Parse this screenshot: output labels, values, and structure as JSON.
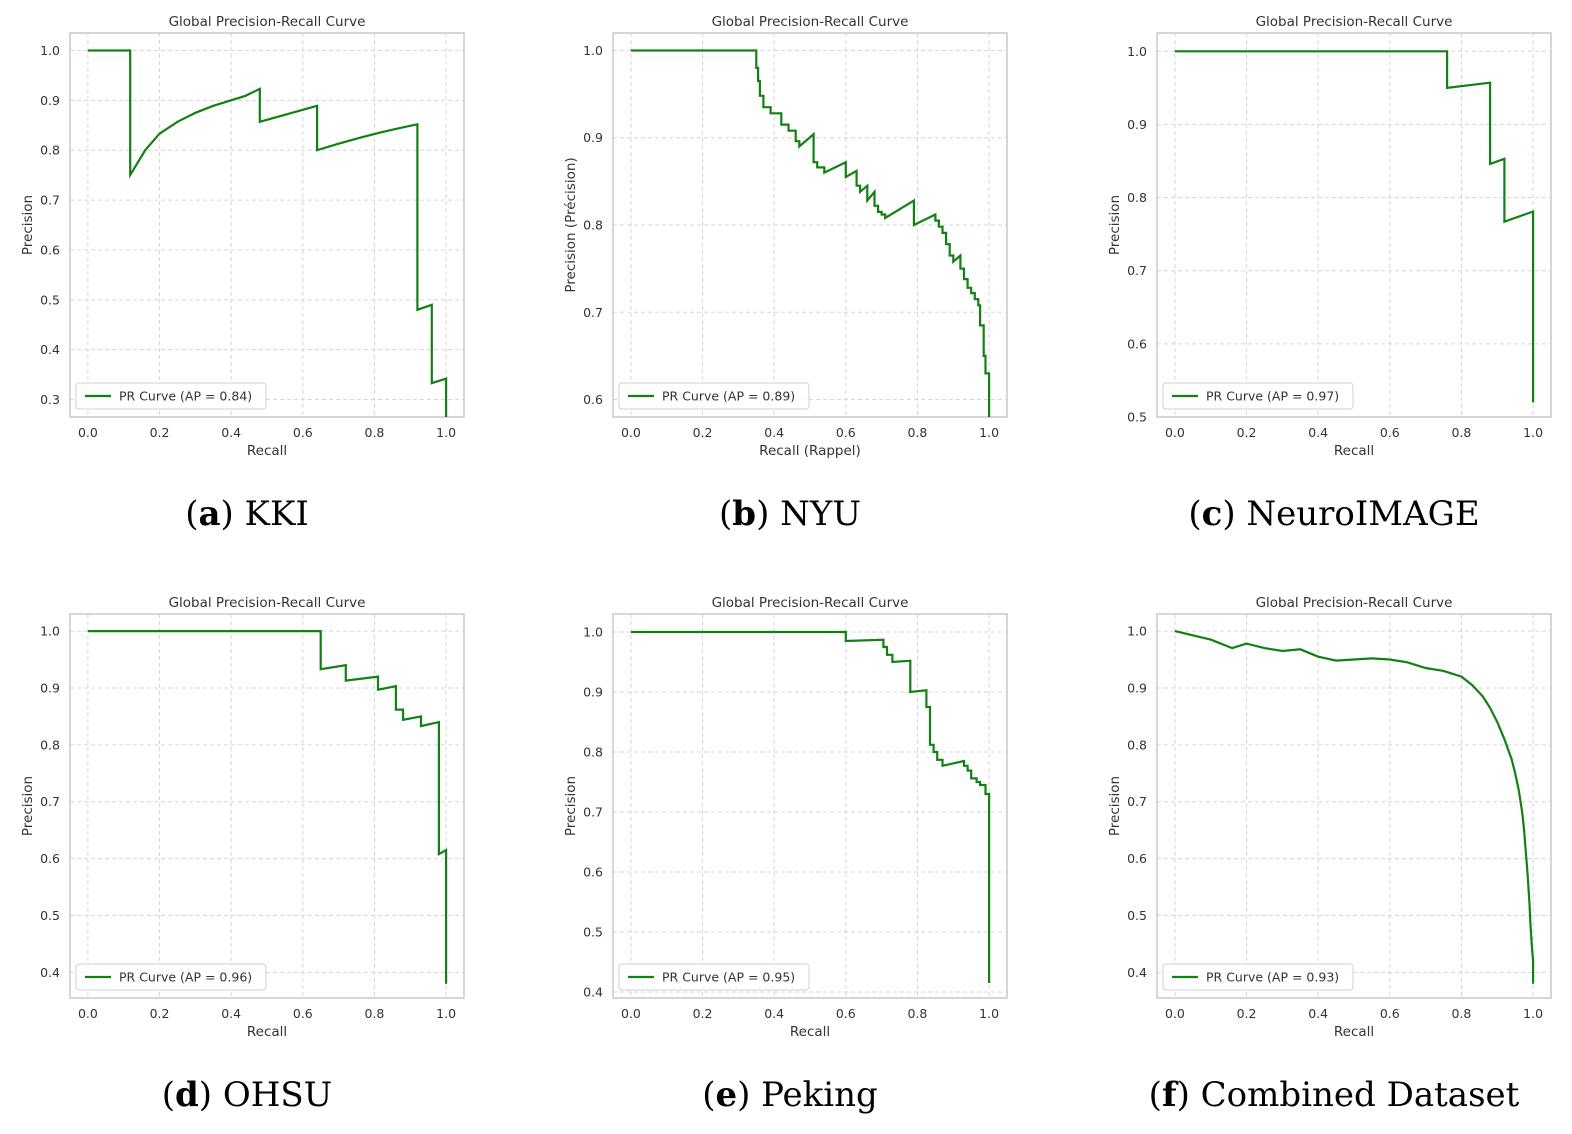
{
  "figure": {
    "colors": {
      "curve": "#138013",
      "grid": "#d6d6d6",
      "frame": "#c9c9c9",
      "text": "#333333"
    }
  },
  "chart_data": [
    {
      "type": "line",
      "title": "Global Precision-Recall Curve",
      "xlabel": "Recall",
      "ylabel": "Precision",
      "xlim": [
        -0.05,
        1.05
      ],
      "ylim": [
        0.265,
        1.035
      ],
      "xticks": [
        "0.0",
        "0.2",
        "0.4",
        "0.6",
        "0.8",
        "1.0"
      ],
      "yticks": [
        "0.3",
        "0.4",
        "0.5",
        "0.6",
        "0.7",
        "0.8",
        "0.9",
        "1.0"
      ],
      "grid": true,
      "legend": "lower-left",
      "caption": {
        "label": "a",
        "text": "KKI"
      },
      "series": [
        {
          "name": "PR Curve (AP = 0.84)",
          "x": [
            0.0,
            0.118,
            0.118,
            0.16,
            0.2,
            0.25,
            0.3,
            0.35,
            0.4,
            0.44,
            0.48,
            0.48,
            0.64,
            0.64,
            0.7,
            0.76,
            0.82,
            0.88,
            0.92,
            0.92,
            0.96,
            0.96,
            1.0,
            1.0
          ],
          "y": [
            1.0,
            1.0,
            0.75,
            0.8,
            0.833,
            0.857,
            0.875,
            0.889,
            0.9,
            0.909,
            0.923,
            0.857,
            0.889,
            0.8,
            0.813,
            0.825,
            0.836,
            0.846,
            0.852,
            0.48,
            0.49,
            0.333,
            0.342,
            0.265
          ]
        }
      ]
    },
    {
      "type": "line",
      "title": "Global Precision-Recall Curve",
      "xlabel": "Recall (Rappel)",
      "ylabel": "Precision (Précision)",
      "xlim": [
        -0.05,
        1.05
      ],
      "ylim": [
        0.58,
        1.02
      ],
      "xticks": [
        "0.0",
        "0.2",
        "0.4",
        "0.6",
        "0.8",
        "1.0"
      ],
      "yticks": [
        "0.6",
        "0.7",
        "0.8",
        "0.9",
        "1.0"
      ],
      "grid": true,
      "legend": "lower-left",
      "caption": {
        "label": "b",
        "text": "NYU"
      },
      "series": [
        {
          "name": "PR Curve (AP = 0.89)",
          "x": [
            0.0,
            0.35,
            0.35,
            0.355,
            0.355,
            0.36,
            0.36,
            0.37,
            0.37,
            0.39,
            0.39,
            0.42,
            0.42,
            0.44,
            0.44,
            0.46,
            0.46,
            0.47,
            0.47,
            0.51,
            0.51,
            0.52,
            0.52,
            0.54,
            0.54,
            0.6,
            0.6,
            0.63,
            0.63,
            0.64,
            0.64,
            0.66,
            0.66,
            0.68,
            0.68,
            0.69,
            0.69,
            0.7,
            0.7,
            0.71,
            0.71,
            0.79,
            0.79,
            0.85,
            0.85,
            0.86,
            0.86,
            0.87,
            0.87,
            0.88,
            0.88,
            0.89,
            0.89,
            0.9,
            0.9,
            0.92,
            0.92,
            0.93,
            0.93,
            0.94,
            0.94,
            0.95,
            0.95,
            0.96,
            0.96,
            0.97,
            0.97,
            0.975,
            0.975,
            0.985,
            0.985,
            0.99,
            0.99,
            1.0,
            1.0
          ],
          "y": [
            1.0,
            1.0,
            0.98,
            0.98,
            0.965,
            0.965,
            0.948,
            0.948,
            0.935,
            0.935,
            0.928,
            0.928,
            0.915,
            0.915,
            0.908,
            0.908,
            0.896,
            0.896,
            0.89,
            0.904,
            0.872,
            0.872,
            0.866,
            0.866,
            0.86,
            0.872,
            0.855,
            0.862,
            0.845,
            0.845,
            0.838,
            0.845,
            0.828,
            0.838,
            0.822,
            0.822,
            0.815,
            0.815,
            0.812,
            0.812,
            0.808,
            0.828,
            0.8,
            0.812,
            0.805,
            0.805,
            0.798,
            0.798,
            0.791,
            0.791,
            0.778,
            0.778,
            0.765,
            0.765,
            0.758,
            0.765,
            0.75,
            0.75,
            0.738,
            0.738,
            0.728,
            0.728,
            0.722,
            0.722,
            0.715,
            0.715,
            0.708,
            0.708,
            0.685,
            0.685,
            0.65,
            0.65,
            0.63,
            0.63,
            0.58
          ]
        }
      ]
    },
    {
      "type": "line",
      "title": "Global Precision-Recall Curve",
      "xlabel": "Recall",
      "ylabel": "Precision",
      "xlim": [
        -0.05,
        1.05
      ],
      "ylim": [
        0.5,
        1.025
      ],
      "xticks": [
        "0.0",
        "0.2",
        "0.4",
        "0.6",
        "0.8",
        "1.0"
      ],
      "yticks": [
        "0.5",
        "0.6",
        "0.7",
        "0.8",
        "0.9",
        "1.0"
      ],
      "grid": true,
      "legend": "lower-left",
      "caption": {
        "label": "c",
        "text": "NeuroIMAGE"
      },
      "series": [
        {
          "name": "PR Curve (AP = 0.97)",
          "x": [
            0.0,
            0.76,
            0.76,
            0.88,
            0.88,
            0.92,
            0.92,
            1.0,
            1.0
          ],
          "y": [
            1.0,
            1.0,
            0.95,
            0.957,
            0.846,
            0.853,
            0.767,
            0.781,
            0.52
          ]
        }
      ]
    },
    {
      "type": "line",
      "title": "Global Precision-Recall Curve",
      "xlabel": "Recall",
      "ylabel": "Precision",
      "xlim": [
        -0.05,
        1.05
      ],
      "ylim": [
        0.355,
        1.03
      ],
      "xticks": [
        "0.0",
        "0.2",
        "0.4",
        "0.6",
        "0.8",
        "1.0"
      ],
      "yticks": [
        "0.4",
        "0.5",
        "0.6",
        "0.7",
        "0.8",
        "0.9",
        "1.0"
      ],
      "grid": true,
      "legend": "lower-left",
      "caption": {
        "label": "d",
        "text": "OHSU"
      },
      "series": [
        {
          "name": "PR Curve (AP = 0.96)",
          "x": [
            0.0,
            0.65,
            0.65,
            0.72,
            0.72,
            0.81,
            0.81,
            0.86,
            0.86,
            0.88,
            0.88,
            0.93,
            0.93,
            0.98,
            0.98,
            1.0,
            1.0
          ],
          "y": [
            1.0,
            1.0,
            0.933,
            0.94,
            0.913,
            0.92,
            0.897,
            0.903,
            0.862,
            0.862,
            0.844,
            0.85,
            0.833,
            0.84,
            0.608,
            0.615,
            0.38
          ]
        }
      ]
    },
    {
      "type": "line",
      "title": "Global Precision-Recall Curve",
      "xlabel": "Recall",
      "ylabel": "Precision",
      "xlim": [
        -0.05,
        1.05
      ],
      "ylim": [
        0.39,
        1.03
      ],
      "xticks": [
        "0.0",
        "0.2",
        "0.4",
        "0.6",
        "0.8",
        "1.0"
      ],
      "yticks": [
        "0.4",
        "0.5",
        "0.6",
        "0.7",
        "0.8",
        "0.9",
        "1.0"
      ],
      "grid": true,
      "legend": "lower-left",
      "caption": {
        "label": "e",
        "text": "Peking"
      },
      "series": [
        {
          "name": "PR Curve (AP = 0.95)",
          "x": [
            0.0,
            0.6,
            0.6,
            0.705,
            0.705,
            0.715,
            0.715,
            0.73,
            0.73,
            0.78,
            0.78,
            0.825,
            0.825,
            0.835,
            0.835,
            0.845,
            0.845,
            0.855,
            0.855,
            0.87,
            0.87,
            0.93,
            0.93,
            0.94,
            0.94,
            0.95,
            0.95,
            0.965,
            0.965,
            0.975,
            0.975,
            0.99,
            0.99,
            1.0,
            1.0
          ],
          "y": [
            1.0,
            1.0,
            0.985,
            0.987,
            0.975,
            0.975,
            0.962,
            0.962,
            0.95,
            0.952,
            0.9,
            0.903,
            0.875,
            0.875,
            0.812,
            0.812,
            0.8,
            0.8,
            0.787,
            0.787,
            0.777,
            0.785,
            0.777,
            0.777,
            0.769,
            0.769,
            0.756,
            0.756,
            0.75,
            0.75,
            0.745,
            0.745,
            0.73,
            0.73,
            0.415
          ]
        }
      ]
    },
    {
      "type": "line",
      "title": "Global Precision-Recall Curve",
      "xlabel": "Recall",
      "ylabel": "Precision",
      "xlim": [
        -0.05,
        1.05
      ],
      "ylim": [
        0.355,
        1.03
      ],
      "xticks": [
        "0.0",
        "0.2",
        "0.4",
        "0.6",
        "0.8",
        "1.0"
      ],
      "yticks": [
        "0.4",
        "0.5",
        "0.6",
        "0.7",
        "0.8",
        "0.9",
        "1.0"
      ],
      "grid": true,
      "legend": "lower-left",
      "caption": {
        "label": "f",
        "text": "Combined Dataset"
      },
      "series": [
        {
          "name": "PR Curve (AP = 0.93)",
          "x": [
            0.0,
            0.1,
            0.16,
            0.2,
            0.25,
            0.3,
            0.35,
            0.4,
            0.45,
            0.5,
            0.55,
            0.6,
            0.65,
            0.7,
            0.75,
            0.8,
            0.83,
            0.86,
            0.88,
            0.9,
            0.92,
            0.94,
            0.95,
            0.96,
            0.97,
            0.975,
            0.98,
            0.985,
            0.99,
            0.993,
            0.996,
            1.0,
            1.0
          ],
          "y": [
            1.0,
            0.985,
            0.97,
            0.978,
            0.97,
            0.965,
            0.968,
            0.955,
            0.948,
            0.95,
            0.952,
            0.95,
            0.945,
            0.935,
            0.93,
            0.92,
            0.905,
            0.885,
            0.865,
            0.84,
            0.81,
            0.775,
            0.75,
            0.72,
            0.68,
            0.65,
            0.61,
            0.57,
            0.52,
            0.48,
            0.45,
            0.42,
            0.38
          ]
        }
      ]
    }
  ]
}
